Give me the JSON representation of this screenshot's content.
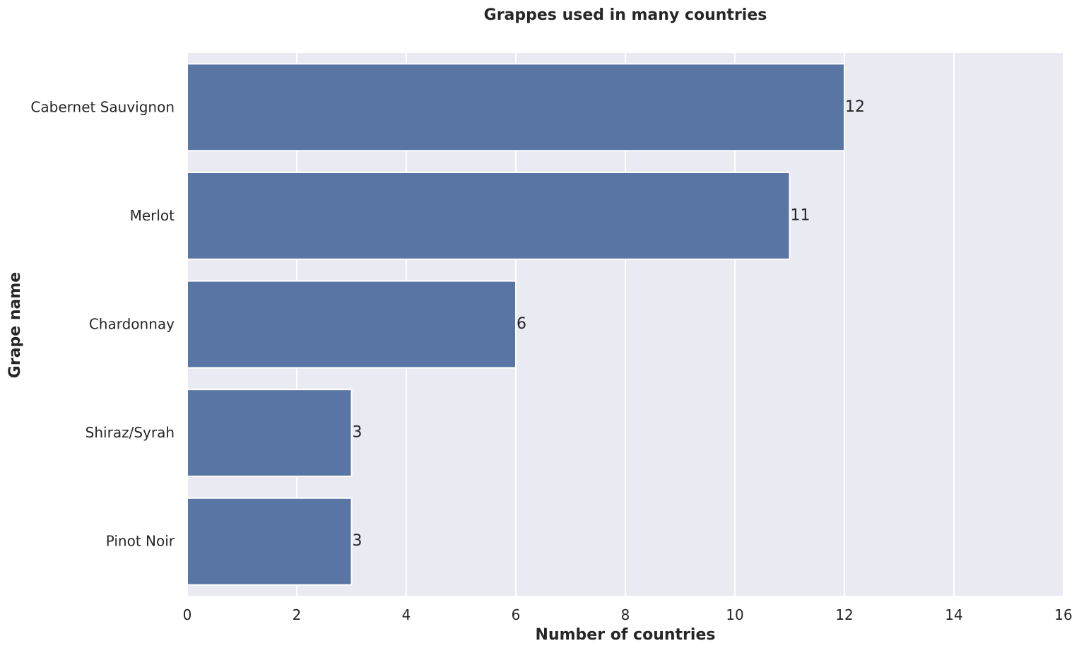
{
  "chart_data": {
    "type": "bar",
    "orientation": "horizontal",
    "title": "Grappes used in many countries",
    "xlabel": "Number of countries",
    "ylabel": "Grape name",
    "categories": [
      "Cabernet Sauvignon",
      "Merlot",
      "Chardonnay",
      "Shiraz/Syrah",
      "Pinot Noir"
    ],
    "values": [
      12,
      11,
      6,
      3,
      3
    ],
    "data_labels": [
      "12",
      "11",
      "6",
      "3",
      "3"
    ],
    "xlim": [
      0,
      16
    ],
    "xticks": [
      0,
      2,
      4,
      6,
      8,
      10,
      12,
      14,
      16
    ],
    "xtick_labels": [
      "0",
      "2",
      "4",
      "6",
      "8",
      "10",
      "12",
      "14",
      "16"
    ],
    "grid": true,
    "legend": "none",
    "colors": {
      "bar": "#5875a4",
      "plot_background": "#eaeaf2",
      "grid": "#ffffff",
      "text": "#262626"
    }
  }
}
